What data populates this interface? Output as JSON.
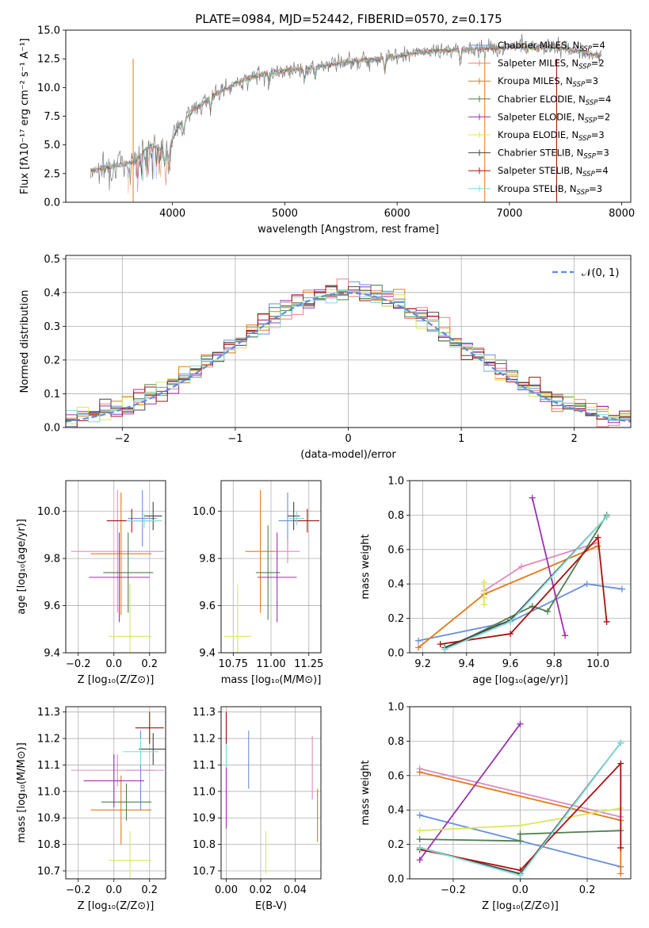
{
  "title": "PLATE=0984, MJD=52442, FIBERID=0570, z=0.175",
  "colors": {
    "Chabrier MILES": "#6a8fdc",
    "Salpeter MILES": "#f08080",
    "Kroupa MILES": "#e07b1a",
    "Chabrier ELODIE": "#4f7f4f",
    "Salpeter ELODIE": "#9b30b0",
    "Kroupa ELODIE": "#d8e85a",
    "Chabrier STELIB": "#444444",
    "Salpeter STELIB": "#aa1111",
    "Kroupa STELIB": "#80dcd8",
    "Kroupa STELIB 2": "#e08ac0",
    "spectrum": "#7a7a7a",
    "gaussian": "#5b8ddc"
  },
  "chart_data": [
    {
      "type": "line",
      "id": "spectrum",
      "title": "PLATE=0984, MJD=52442, FIBERID=0570, z=0.175",
      "xlabel": "wavelength [Angstrom, rest frame]",
      "ylabel": "Flux [fλ10⁻¹⁷ erg cm⁻² s⁻¹ A⁻¹]",
      "xlim": [
        3050,
        8080
      ],
      "ylim": [
        0,
        15
      ],
      "xticks": [
        "4000",
        "5000",
        "6000",
        "7000",
        "8000"
      ],
      "yticks": [
        "0.0",
        "2.5",
        "5.0",
        "7.5",
        "10.0",
        "12.5",
        "15.0"
      ],
      "grid": false,
      "legend_position": "upper right",
      "legend": [
        {
          "name": "Chabrier MILES, N",
          "sub": "SSP",
          "tail": "=4",
          "color": "#6a8fdc"
        },
        {
          "name": "Salpeter MILES, N",
          "sub": "SSP",
          "tail": "=2",
          "color": "#f08080"
        },
        {
          "name": "Kroupa MILES, N",
          "sub": "SSP",
          "tail": "=3",
          "color": "#e07b1a"
        },
        {
          "name": "Chabrier ELODIE, N",
          "sub": "SSP",
          "tail": "=4",
          "color": "#4f7f4f"
        },
        {
          "name": "Salpeter ELODIE, N",
          "sub": "SSP",
          "tail": "=2",
          "color": "#9b30b0"
        },
        {
          "name": "Kroupa ELODIE, N",
          "sub": "SSP",
          "tail": "=3",
          "color": "#d8e85a"
        },
        {
          "name": "Chabrier STELIB, N",
          "sub": "SSP",
          "tail": "=3",
          "color": "#444444"
        },
        {
          "name": "Salpeter STELIB, N",
          "sub": "SSP",
          "tail": "=4",
          "color": "#aa1111"
        },
        {
          "name": "Kroupa STELIB, N",
          "sub": "SSP",
          "tail": "=3",
          "color": "#80dcd8"
        }
      ],
      "series_envelope": {
        "x": [
          3270,
          3500,
          3650,
          3800,
          3950,
          4050,
          4200,
          4400,
          4600,
          4800,
          5000,
          5200,
          5400,
          5600,
          5800,
          6000,
          6200,
          6400,
          6600,
          6800,
          7000,
          7200,
          7400,
          7600,
          7800
        ],
        "y": [
          2.8,
          3.2,
          3.5,
          5.0,
          4.4,
          6.6,
          8.2,
          9.5,
          10.5,
          11.2,
          11.5,
          11.7,
          12.0,
          12.3,
          12.5,
          12.7,
          13.1,
          13.2,
          13.3,
          13.4,
          13.5,
          13.5,
          13.6,
          13.2,
          12.8
        ]
      }
    },
    {
      "type": "line",
      "id": "residuals",
      "xlabel": "(data-model)/error",
      "ylabel": "Normed distribution",
      "xlim": [
        -2.5,
        2.5
      ],
      "ylim": [
        0,
        0.51
      ],
      "xticks": [
        "−2",
        "−1",
        "0",
        "1",
        "2"
      ],
      "yticks": [
        "0.0",
        "0.1",
        "0.2",
        "0.3",
        "0.4",
        "0.5"
      ],
      "grid": true,
      "legend": [
        {
          "name": "𝒩(0, 1)",
          "style": "dashed",
          "color": "#5b8ddc"
        }
      ],
      "legend_position": "upper right",
      "bin_width": 0.1,
      "histogram_series": 9
    },
    {
      "type": "scatter",
      "id": "age-vs-Z",
      "xlabel": "Z [log₁₀(Z/Z⊙)]",
      "ylabel": "age  [log₁₀(age/yr)]",
      "xlim": [
        -0.27,
        0.29
      ],
      "ylim": [
        9.4,
        10.13
      ],
      "xticks": [
        "−0.2",
        "0.0",
        "0.2"
      ],
      "yticks": [
        "9.4",
        "9.6",
        "9.8",
        "10.0"
      ],
      "grid": true,
      "points": [
        {
          "x": 0.16,
          "y": 9.97,
          "xerr": 0.08,
          "yerr": 0.12,
          "color": "#6a8fdc"
        },
        {
          "x": 0.02,
          "y": 9.83,
          "xerr": 0.26,
          "yerr": 0.26,
          "color": "#e08ac0"
        },
        {
          "x": 0.04,
          "y": 9.82,
          "xerr": 0.17,
          "yerr": 0.26,
          "color": "#e07b1a"
        },
        {
          "x": 0.08,
          "y": 9.74,
          "xerr": 0.14,
          "yerr": 0.17,
          "color": "#4f7f4f"
        },
        {
          "x": 0.03,
          "y": 9.72,
          "xerr": 0.17,
          "yerr": 0.19,
          "color": "#9b30b0"
        },
        {
          "x": 0.09,
          "y": 9.47,
          "xerr": 0.12,
          "yerr": 0.22,
          "color": "#d8e85a"
        },
        {
          "x": 0.22,
          "y": 9.98,
          "xerr": 0.05,
          "yerr": 0.06,
          "color": "#444444"
        },
        {
          "x": 0.1,
          "y": 9.96,
          "xerr": 0.14,
          "yerr": 0.05,
          "color": "#aa1111"
        },
        {
          "x": 0.17,
          "y": 9.96,
          "xerr": 0.1,
          "yerr": 0.03,
          "color": "#80dcd8"
        }
      ]
    },
    {
      "type": "scatter",
      "id": "age-vs-mass",
      "xlabel": "mass [log₁₀(M/M⊙)]",
      "ylabel": "",
      "xlim": [
        10.67,
        11.33
      ],
      "ylim": [
        9.4,
        10.13
      ],
      "xticks": [
        "10.75",
        "11.00",
        "11.25"
      ],
      "yticks": [
        "9.4",
        "9.6",
        "9.8",
        "10.0"
      ],
      "grid": true,
      "points": [
        {
          "x": 11.11,
          "y": 9.96,
          "xerr": 0.06,
          "yerr": 0.12,
          "color": "#6a8fdc"
        },
        {
          "x": 11.11,
          "y": 9.83,
          "xerr": 0.08,
          "yerr": 0.05,
          "color": "#e08ac0"
        },
        {
          "x": 10.93,
          "y": 9.83,
          "xerr": 0.1,
          "yerr": 0.26,
          "color": "#e07b1a"
        },
        {
          "x": 10.98,
          "y": 9.74,
          "xerr": 0.08,
          "yerr": 0.2,
          "color": "#4f7f4f"
        },
        {
          "x": 11.04,
          "y": 9.72,
          "xerr": 0.13,
          "yerr": 0.19,
          "color": "#9b30b0"
        },
        {
          "x": 10.78,
          "y": 9.47,
          "xerr": 0.09,
          "yerr": 0.22,
          "color": "#d8e85a"
        },
        {
          "x": 11.15,
          "y": 9.98,
          "xerr": 0.04,
          "yerr": 0.06,
          "color": "#444444"
        },
        {
          "x": 11.24,
          "y": 9.96,
          "xerr": 0.08,
          "yerr": 0.05,
          "color": "#aa1111"
        },
        {
          "x": 11.17,
          "y": 9.97,
          "xerr": 0.05,
          "yerr": 0.03,
          "color": "#80dcd8"
        }
      ]
    },
    {
      "type": "line",
      "id": "weight-vs-age",
      "xlabel": "age  [log₁₀(age/yr)]",
      "ylabel": "mass weight",
      "xlim": [
        9.14,
        10.15
      ],
      "ylim": [
        0,
        1
      ],
      "xticks": [
        "9.2",
        "9.4",
        "9.6",
        "9.8",
        "10.0"
      ],
      "yticks": [
        "0.0",
        "0.2",
        "0.4",
        "0.6",
        "0.8",
        "1.0"
      ],
      "grid": true,
      "series": [
        {
          "color": "#6a8fdc",
          "x": [
            9.18,
            9.6,
            9.95,
            10.11
          ],
          "y": [
            0.07,
            0.18,
            0.4,
            0.37
          ]
        },
        {
          "color": "#e08ac0",
          "x": [
            9.48,
            9.65,
            10.0
          ],
          "y": [
            0.36,
            0.5,
            0.64
          ]
        },
        {
          "color": "#e07b1a",
          "x": [
            9.18,
            9.48,
            10.0
          ],
          "y": [
            0.03,
            0.34,
            0.62
          ]
        },
        {
          "color": "#4f7f4f",
          "x": [
            9.3,
            9.7,
            9.77,
            10.04
          ],
          "y": [
            0.02,
            0.27,
            0.24,
            0.8
          ]
        },
        {
          "color": "#9b30b0",
          "x": [
            9.7,
            9.85
          ],
          "y": [
            0.9,
            0.1
          ]
        },
        {
          "color": "#d8e85a",
          "x": [
            9.48,
            9.48,
            9.48
          ],
          "y": [
            0.28,
            0.32,
            0.41
          ]
        },
        {
          "color": "#444444",
          "x": [
            9.3,
            9.6,
            10.04
          ],
          "y": [
            0.03,
            0.19,
            0.79
          ]
        },
        {
          "color": "#aa1111",
          "x": [
            9.28,
            9.6,
            10.0,
            10.04
          ],
          "y": [
            0.05,
            0.11,
            0.67,
            0.18
          ]
        },
        {
          "color": "#80dcd8",
          "x": [
            9.3,
            9.6,
            10.04
          ],
          "y": [
            0.02,
            0.18,
            0.79
          ]
        }
      ]
    },
    {
      "type": "scatter",
      "id": "mass-vs-Z",
      "xlabel": "Z [log₁₀(Z/Z⊙)]",
      "ylabel": "mass [log₁₀(M/M⊙)]",
      "xlim": [
        -0.27,
        0.29
      ],
      "ylim": [
        10.67,
        11.32
      ],
      "xticks": [
        "−0.2",
        "0.0",
        "0.2"
      ],
      "yticks": [
        "10.7",
        "10.8",
        "10.9",
        "11.0",
        "11.1",
        "11.2",
        "11.3"
      ],
      "grid": true,
      "points": [
        {
          "x": 0.15,
          "y": 11.08,
          "xerr": 0.08,
          "yerr": 0.15,
          "color": "#6a8fdc"
        },
        {
          "x": 0.02,
          "y": 11.08,
          "xerr": 0.26,
          "yerr": 0.06,
          "color": "#e08ac0"
        },
        {
          "x": 0.04,
          "y": 10.93,
          "xerr": 0.17,
          "yerr": 0.13,
          "color": "#e07b1a"
        },
        {
          "x": 0.07,
          "y": 10.96,
          "xerr": 0.14,
          "yerr": 0.07,
          "color": "#4f7f4f"
        },
        {
          "x": 0.0,
          "y": 11.04,
          "xerr": 0.17,
          "yerr": 0.1,
          "color": "#9b30b0"
        },
        {
          "x": 0.09,
          "y": 10.74,
          "xerr": 0.12,
          "yerr": 0.11,
          "color": "#d8e85a"
        },
        {
          "x": 0.22,
          "y": 11.16,
          "xerr": 0.08,
          "yerr": 0.06,
          "color": "#444444"
        },
        {
          "x": 0.2,
          "y": 11.24,
          "xerr": 0.08,
          "yerr": 0.06,
          "color": "#aa1111"
        },
        {
          "x": 0.15,
          "y": 11.15,
          "xerr": 0.1,
          "yerr": 0.05,
          "color": "#80dcd8"
        }
      ]
    },
    {
      "type": "scatter",
      "id": "mass-vs-ebv",
      "xlabel": "E(B-V)",
      "ylabel": "",
      "xlim": [
        -0.003,
        0.055
      ],
      "ylim": [
        10.67,
        11.32
      ],
      "xticks": [
        "0.00",
        "0.02",
        "0.04"
      ],
      "yticks": [
        "10.7",
        "10.8",
        "10.9",
        "11.0",
        "11.1",
        "11.2",
        "11.3"
      ],
      "grid": true,
      "points": [
        {
          "x": 0.0,
          "y": 11.08,
          "yerr": 0.22,
          "color": "#9b30b0"
        },
        {
          "x": 0.0,
          "y": 11.15,
          "yerr": 0.06,
          "color": "#80dcd8"
        },
        {
          "x": 0.0,
          "y": 11.24,
          "yerr": 0.06,
          "color": "#aa1111"
        },
        {
          "x": 0.013,
          "y": 11.12,
          "yerr": 0.11,
          "color": "#6a8fdc"
        },
        {
          "x": 0.023,
          "y": 10.77,
          "yerr": 0.08,
          "color": "#d8e85a"
        },
        {
          "x": 0.05,
          "y": 11.09,
          "yerr": 0.12,
          "color": "#e08ac0"
        },
        {
          "x": 0.053,
          "y": 10.91,
          "yerr": 0.1,
          "color": "#e07b1a"
        }
      ]
    },
    {
      "type": "line",
      "id": "weight-vs-Z",
      "xlabel": "Z [log₁₀(Z/Z⊙)]",
      "ylabel": "mass weight",
      "xlim": [
        -0.33,
        0.33
      ],
      "ylim": [
        0,
        1
      ],
      "xticks": [
        "−0.2",
        "0.0",
        "0.2"
      ],
      "yticks": [
        "0.0",
        "0.2",
        "0.4",
        "0.6",
        "0.8",
        "1.0"
      ],
      "grid": true,
      "series": [
        {
          "color": "#6a8fdc",
          "x": [
            -0.3,
            0.3
          ],
          "y": [
            0.37,
            0.07
          ]
        },
        {
          "color": "#e08ac0",
          "x": [
            -0.3,
            0.3
          ],
          "y": [
            0.64,
            0.36
          ]
        },
        {
          "color": "#e07b1a",
          "x": [
            -0.3,
            0.3,
            0.3
          ],
          "y": [
            0.62,
            0.34,
            0.03
          ]
        },
        {
          "color": "#4f7f4f",
          "x": [
            -0.3,
            0.0,
            0.0,
            0.3
          ],
          "y": [
            0.23,
            0.22,
            0.26,
            0.28
          ]
        },
        {
          "color": "#9b30b0",
          "x": [
            -0.3,
            0.0
          ],
          "y": [
            0.11,
            0.9
          ]
        },
        {
          "color": "#d8e85a",
          "x": [
            -0.3,
            0.0,
            0.3
          ],
          "y": [
            0.28,
            0.31,
            0.41
          ]
        },
        {
          "color": "#444444",
          "x": [
            -0.3,
            0.0,
            0.3
          ],
          "y": [
            0.18,
            0.03,
            0.79
          ]
        },
        {
          "color": "#aa1111",
          "x": [
            -0.3,
            0.0,
            0.3,
            0.3
          ],
          "y": [
            0.17,
            0.05,
            0.67,
            0.18
          ]
        },
        {
          "color": "#80dcd8",
          "x": [
            -0.3,
            0.0,
            0.3
          ],
          "y": [
            0.18,
            0.02,
            0.79
          ]
        }
      ]
    }
  ]
}
